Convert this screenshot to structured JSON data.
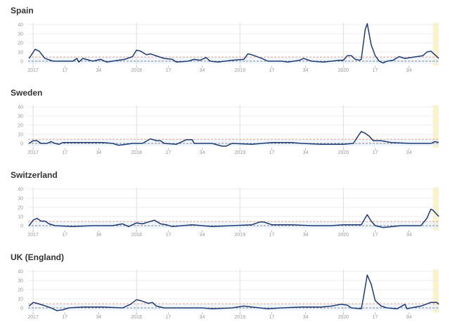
{
  "chart_data": [
    {
      "type": "line",
      "title": "Spain",
      "ylim": [
        -5,
        42
      ],
      "yticks": [
        0,
        10,
        20,
        30,
        40
      ],
      "x_unit": "weeks since 2017 week 1",
      "points": [
        [
          -2,
          3
        ],
        [
          1,
          13
        ],
        [
          3,
          11
        ],
        [
          6,
          3
        ],
        [
          10,
          0
        ],
        [
          20,
          0
        ],
        [
          22,
          3
        ],
        [
          23,
          -1
        ],
        [
          25,
          3
        ],
        [
          30,
          0
        ],
        [
          34,
          2
        ],
        [
          37,
          -1
        ],
        [
          40,
          0
        ],
        [
          46,
          2
        ],
        [
          50,
          5
        ],
        [
          52,
          12
        ],
        [
          54,
          11
        ],
        [
          57,
          7
        ],
        [
          59,
          8
        ],
        [
          63,
          5
        ],
        [
          66,
          3
        ],
        [
          70,
          2
        ],
        [
          72,
          -1
        ],
        [
          78,
          0
        ],
        [
          81,
          2
        ],
        [
          84,
          1
        ],
        [
          87,
          4
        ],
        [
          89,
          0
        ],
        [
          93,
          -1
        ],
        [
          100,
          1
        ],
        [
          106,
          2
        ],
        [
          108,
          8
        ],
        [
          110,
          7
        ],
        [
          115,
          3
        ],
        [
          118,
          0
        ],
        [
          125,
          0
        ],
        [
          128,
          -1
        ],
        [
          134,
          1
        ],
        [
          136,
          3
        ],
        [
          140,
          0
        ],
        [
          146,
          -1
        ],
        [
          154,
          1
        ],
        [
          156,
          1
        ],
        [
          158,
          6
        ],
        [
          160,
          6
        ],
        [
          162,
          2
        ],
        [
          164,
          1
        ],
        [
          165,
          2
        ],
        [
          167,
          35
        ],
        [
          168,
          41
        ],
        [
          170,
          18
        ],
        [
          172,
          6
        ],
        [
          174,
          0
        ],
        [
          176,
          -2
        ],
        [
          178,
          0
        ],
        [
          181,
          1
        ],
        [
          184,
          5
        ],
        [
          187,
          3
        ],
        [
          190,
          4
        ],
        [
          193,
          5
        ],
        [
          196,
          6
        ],
        [
          198,
          10
        ],
        [
          200,
          11
        ],
        [
          204,
          3
        ]
      ]
    },
    {
      "type": "line",
      "title": "Sweden",
      "ylim": [
        -5,
        42
      ],
      "yticks": [
        0,
        10,
        20,
        30,
        40
      ],
      "x_unit": "weeks since 2017 week 1",
      "points": [
        [
          -2,
          0
        ],
        [
          0,
          3
        ],
        [
          2,
          3
        ],
        [
          4,
          0
        ],
        [
          7,
          0
        ],
        [
          9,
          2
        ],
        [
          11,
          0
        ],
        [
          13,
          -1
        ],
        [
          15,
          1
        ],
        [
          25,
          1
        ],
        [
          35,
          1
        ],
        [
          40,
          0
        ],
        [
          43,
          -2
        ],
        [
          50,
          0
        ],
        [
          55,
          0
        ],
        [
          59,
          5
        ],
        [
          62,
          3
        ],
        [
          64,
          3
        ],
        [
          66,
          0
        ],
        [
          72,
          -1
        ],
        [
          75,
          2
        ],
        [
          77,
          4
        ],
        [
          80,
          4
        ],
        [
          81,
          0
        ],
        [
          90,
          0
        ],
        [
          95,
          -3
        ],
        [
          97,
          -3
        ],
        [
          100,
          0
        ],
        [
          110,
          -1
        ],
        [
          120,
          1
        ],
        [
          130,
          1
        ],
        [
          135,
          0
        ],
        [
          145,
          -1
        ],
        [
          156,
          -1
        ],
        [
          161,
          0
        ],
        [
          164,
          10
        ],
        [
          165,
          13
        ],
        [
          167,
          11
        ],
        [
          169,
          8
        ],
        [
          171,
          3
        ],
        [
          175,
          3
        ],
        [
          180,
          1
        ],
        [
          190,
          0
        ],
        [
          200,
          0
        ],
        [
          202,
          2
        ],
        [
          204,
          1
        ]
      ]
    },
    {
      "type": "line",
      "title": "Switzerland",
      "ylim": [
        -5,
        42
      ],
      "yticks": [
        0,
        10,
        20,
        30,
        40
      ],
      "x_unit": "weeks since 2017 week 1",
      "points": [
        [
          -2,
          0
        ],
        [
          0,
          6
        ],
        [
          2,
          8
        ],
        [
          4,
          5
        ],
        [
          6,
          5
        ],
        [
          8,
          2
        ],
        [
          11,
          0
        ],
        [
          20,
          -1
        ],
        [
          30,
          0
        ],
        [
          40,
          0
        ],
        [
          45,
          2
        ],
        [
          48,
          -1
        ],
        [
          52,
          3
        ],
        [
          55,
          2
        ],
        [
          58,
          4
        ],
        [
          61,
          6
        ],
        [
          64,
          2
        ],
        [
          67,
          1
        ],
        [
          70,
          -1
        ],
        [
          80,
          1
        ],
        [
          90,
          -1
        ],
        [
          100,
          0
        ],
        [
          110,
          1
        ],
        [
          114,
          4
        ],
        [
          116,
          4
        ],
        [
          120,
          1
        ],
        [
          130,
          1
        ],
        [
          140,
          0
        ],
        [
          150,
          0
        ],
        [
          156,
          1
        ],
        [
          165,
          1
        ],
        [
          168,
          12
        ],
        [
          170,
          5
        ],
        [
          172,
          0
        ],
        [
          176,
          -2
        ],
        [
          185,
          0
        ],
        [
          195,
          0
        ],
        [
          198,
          8
        ],
        [
          200,
          18
        ],
        [
          201,
          17
        ],
        [
          204,
          10
        ]
      ]
    },
    {
      "type": "line",
      "title": "UK (England)",
      "ylim": [
        -5,
        42
      ],
      "yticks": [
        0,
        10,
        20,
        30,
        40
      ],
      "x_unit": "weeks since 2017 week 1",
      "points": [
        [
          -2,
          2
        ],
        [
          0,
          6
        ],
        [
          2,
          5
        ],
        [
          5,
          3
        ],
        [
          9,
          0
        ],
        [
          12,
          -3
        ],
        [
          15,
          -2
        ],
        [
          18,
          0
        ],
        [
          25,
          1
        ],
        [
          35,
          1
        ],
        [
          45,
          0
        ],
        [
          49,
          4
        ],
        [
          52,
          9
        ],
        [
          54,
          8
        ],
        [
          58,
          5
        ],
        [
          60,
          6
        ],
        [
          62,
          2
        ],
        [
          66,
          0
        ],
        [
          75,
          0
        ],
        [
          85,
          0
        ],
        [
          90,
          -1
        ],
        [
          100,
          0
        ],
        [
          106,
          2
        ],
        [
          110,
          1
        ],
        [
          118,
          -1
        ],
        [
          125,
          0
        ],
        [
          135,
          1
        ],
        [
          145,
          1
        ],
        [
          150,
          2
        ],
        [
          155,
          4
        ],
        [
          158,
          3
        ],
        [
          160,
          0
        ],
        [
          165,
          -1
        ],
        [
          166,
          10
        ],
        [
          168,
          36
        ],
        [
          170,
          26
        ],
        [
          172,
          8
        ],
        [
          175,
          2
        ],
        [
          178,
          0
        ],
        [
          183,
          -1
        ],
        [
          187,
          4
        ],
        [
          188,
          -1
        ],
        [
          190,
          0
        ],
        [
          195,
          2
        ],
        [
          200,
          6
        ],
        [
          203,
          6
        ],
        [
          204,
          4
        ]
      ]
    }
  ],
  "xticks": [
    {
      "t": 0,
      "label": "2017",
      "year": true
    },
    {
      "t": 16,
      "label": "17"
    },
    {
      "t": 33,
      "label": "34"
    },
    {
      "t": 52,
      "label": "2018",
      "year": true
    },
    {
      "t": 68,
      "label": "17"
    },
    {
      "t": 85,
      "label": "34"
    },
    {
      "t": 104,
      "label": "2019",
      "year": true
    },
    {
      "t": 120,
      "label": "17"
    },
    {
      "t": 137,
      "label": "34"
    },
    {
      "t": 156,
      "label": "2020",
      "year": true
    },
    {
      "t": 172,
      "label": "17"
    },
    {
      "t": 189,
      "label": "34"
    }
  ],
  "xrange": [
    -2.5,
    204
  ],
  "highlight_from": 201,
  "threshold": 4.5,
  "colors": {
    "line": "#1f3a73",
    "threshold": "#e8a08a",
    "baseline": "#888888",
    "highlight": "#fbf3c8",
    "band": "#e3eefb"
  }
}
